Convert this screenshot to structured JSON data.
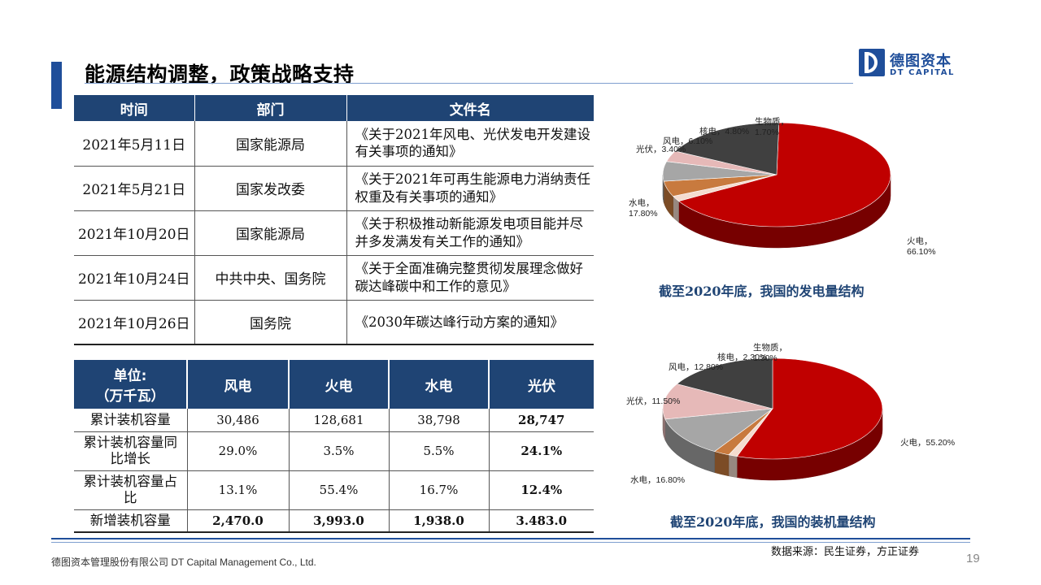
{
  "title": "能源结构调整，政策战略支持",
  "logo": {
    "cn": "德图资本",
    "en": "DT CAPITAL"
  },
  "policy_table": {
    "headers": [
      "时间",
      "部门",
      "文件名"
    ],
    "rows": [
      [
        "2021年5月11日",
        "国家能源局",
        "《关于2021年风电、光伏发电开发建设有关事项的通知》"
      ],
      [
        "2021年5月21日",
        "国家发改委",
        "《关于2021年可再生能源电力消纳责任权重及有关事项的通知》"
      ],
      [
        "2021年10月20日",
        "国家能源局",
        "《关于积极推动新能源发电项目能并尽并多发满发有关工作的通知》"
      ],
      [
        "2021年10月24日",
        "中共中央、国务院",
        "《关于全面准确完整贯彻发展理念做好碳达峰碳中和工作的意见》"
      ],
      [
        "2021年10月26日",
        "国务院",
        "《2030年碳达峰行动方案的通知》"
      ]
    ]
  },
  "capacity_table": {
    "unit_line1": "单位:",
    "unit_line2": "（万千瓦）",
    "headers": [
      "风电",
      "火电",
      "水电",
      "光伏"
    ],
    "rows": [
      {
        "label": "累计装机容量",
        "values": [
          "30,486",
          "128,681",
          "38,798",
          "28,747"
        ]
      },
      {
        "label": "累计装机容量同比增长",
        "values": [
          "29.0%",
          "3.5%",
          "5.5%",
          "24.1%"
        ]
      },
      {
        "label": "累计装机容量占比",
        "values": [
          "13.1%",
          "55.4%",
          "16.7%",
          "12.4%"
        ]
      },
      {
        "label": "新增装机容量",
        "values": [
          "2,470.0",
          "3,993.0",
          "1,938.0",
          "3.483.0"
        ]
      }
    ]
  },
  "chart_data": [
    {
      "type": "pie",
      "title": "截至2020年底，我国的发电量结构",
      "slices": [
        {
          "name": "火电",
          "value": 66.1,
          "label": "66.10%",
          "color": "#c00000"
        },
        {
          "name": "生物质",
          "value": 1.7,
          "label": "1.70%",
          "color": "#f4dccf"
        },
        {
          "name": "核电",
          "value": 4.8,
          "label": "4.80%",
          "color": "#c87a3e"
        },
        {
          "name": "风电",
          "value": 6.1,
          "label": "6.10%",
          "color": "#a6a6a6"
        },
        {
          "name": "光伏",
          "value": 3.4,
          "label": "3.40%",
          "color": "#e6b9b8"
        },
        {
          "name": "水电",
          "value": 17.8,
          "label": "17.80%",
          "color": "#404040"
        }
      ]
    },
    {
      "type": "pie",
      "title": "截至2020年底，我国的装机量结构",
      "slices": [
        {
          "name": "火电",
          "value": 55.2,
          "label": "55.20%",
          "color": "#c00000"
        },
        {
          "name": "生物质",
          "value": 1.3,
          "label": "1.30%",
          "color": "#f4dccf"
        },
        {
          "name": "核电",
          "value": 2.3,
          "label": "2.30%",
          "color": "#c87a3e"
        },
        {
          "name": "风电",
          "value": 12.8,
          "label": "12.80%",
          "color": "#a6a6a6"
        },
        {
          "name": "光伏",
          "value": 11.5,
          "label": "11.50%",
          "color": "#e6b9b8"
        },
        {
          "name": "水电",
          "value": 16.8,
          "label": "16.80%",
          "color": "#404040"
        }
      ]
    }
  ],
  "source": "数据来源：民生证券，方正证券",
  "company": "德图资本管理股份有限公司 DT Capital Management Co., Ltd.",
  "page_number": "19"
}
